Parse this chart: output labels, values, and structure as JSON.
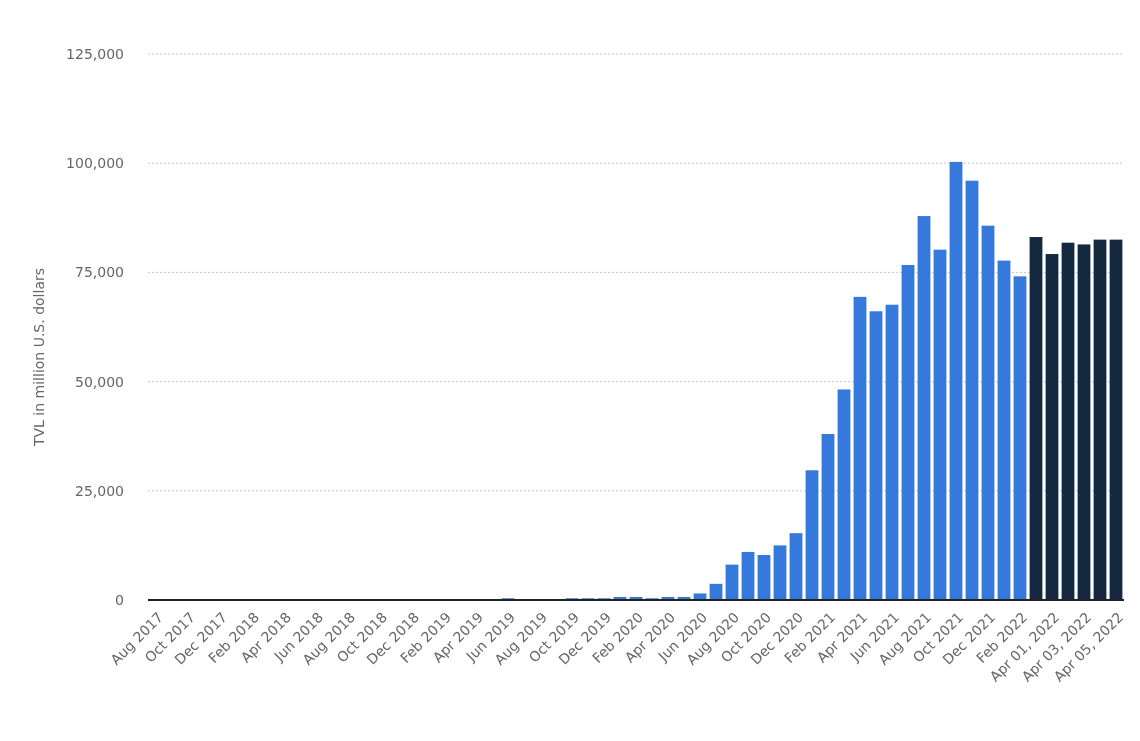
{
  "chart_data": {
    "type": "bar",
    "ylabel": "TVL in million U.S. dollars",
    "categories": [
      "Aug 2017",
      null,
      "Oct 2017",
      null,
      "Dec 2017",
      null,
      "Feb 2018",
      null,
      "Apr 2018",
      null,
      "Jun 2018",
      null,
      "Aug 2018",
      null,
      "Oct 2018",
      null,
      "Dec 2018",
      null,
      "Feb 2019",
      null,
      "Apr 2019",
      null,
      "Jun 2019",
      null,
      "Aug 2019",
      null,
      "Oct 2019",
      null,
      "Dec 2019",
      null,
      "Feb 2020",
      null,
      "Apr 2020",
      null,
      "Jun 2020",
      null,
      "Aug 2020",
      null,
      "Oct 2020",
      null,
      "Dec 2020",
      null,
      "Feb 2021",
      null,
      "Apr 2021",
      null,
      "Jun 2021",
      null,
      "Aug 2021",
      null,
      "Oct 2021",
      null,
      "Dec 2021",
      null,
      "Feb 2022",
      null,
      "Apr 01, 2022",
      null,
      "Apr 03, 2022",
      null,
      "Apr 05, 2022"
    ],
    "values": [
      0,
      0,
      0,
      0,
      0,
      0,
      0,
      0,
      0,
      0,
      0,
      0,
      0,
      0,
      0,
      0,
      0,
      0,
      0,
      0,
      0,
      0,
      400,
      0,
      0,
      0,
      400,
      400,
      400,
      700,
      700,
      400,
      700,
      700,
      1500,
      3700,
      8100,
      11000,
      10300,
      12500,
      15300,
      29700,
      38000,
      48200,
      69400,
      66100,
      67600,
      76700,
      87900,
      80200,
      100300,
      96000,
      85700,
      77700,
      74100,
      83100,
      79200,
      81800,
      81400,
      82500,
      82500
    ],
    "colors": [
      "#3579dc",
      "#3579dc",
      "#3579dc",
      "#3579dc",
      "#3579dc",
      "#3579dc",
      "#3579dc",
      "#3579dc",
      "#3579dc",
      "#3579dc",
      "#3579dc",
      "#3579dc",
      "#3579dc",
      "#3579dc",
      "#3579dc",
      "#3579dc",
      "#3579dc",
      "#3579dc",
      "#3579dc",
      "#3579dc",
      "#3579dc",
      "#3579dc",
      "#3579dc",
      "#3579dc",
      "#3579dc",
      "#3579dc",
      "#3579dc",
      "#3579dc",
      "#3579dc",
      "#3579dc",
      "#3579dc",
      "#3579dc",
      "#3579dc",
      "#3579dc",
      "#3579dc",
      "#3579dc",
      "#3579dc",
      "#3579dc",
      "#3579dc",
      "#3579dc",
      "#3579dc",
      "#3579dc",
      "#3579dc",
      "#3579dc",
      "#3579dc",
      "#3579dc",
      "#3579dc",
      "#3579dc",
      "#3579dc",
      "#3579dc",
      "#3579dc",
      "#3579dc",
      "#3579dc",
      "#3579dc",
      "#3579dc",
      "#14283f",
      "#14283f",
      "#14283f",
      "#14283f",
      "#14283f",
      "#14283f"
    ],
    "ylim": [
      0,
      125000
    ],
    "yticks": [
      {
        "value": 0,
        "label": "0"
      },
      {
        "value": 25000,
        "label": "25,000"
      },
      {
        "value": 50000,
        "label": "50,000"
      },
      {
        "value": 75000,
        "label": "75,000"
      },
      {
        "value": 100000,
        "label": "100,000"
      },
      {
        "value": 125000,
        "label": "125,000"
      }
    ],
    "grid": "y"
  }
}
